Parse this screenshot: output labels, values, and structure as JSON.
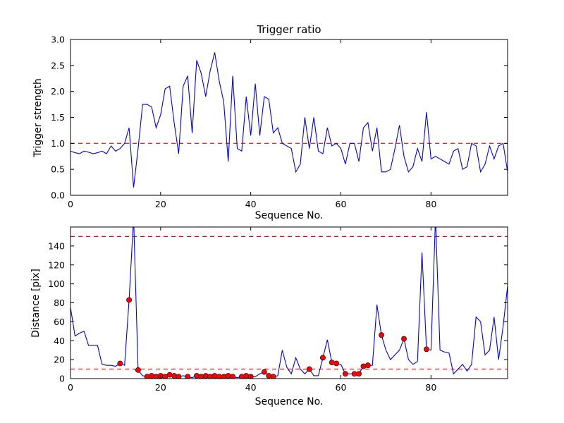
{
  "figure": {
    "background": "#ffffff",
    "line_color": "#0000ff",
    "threshold_color": "#ff0000",
    "marker_face_color": "#ff0000",
    "marker_edge_color": "#000000",
    "axis_color": "#000000"
  },
  "chart_data": [
    {
      "type": "line",
      "title": "Trigger ratio",
      "xlabel": "Sequence No.",
      "ylabel": "Trigger strength",
      "xlim": [
        0,
        97
      ],
      "ylim": [
        0.0,
        3.0
      ],
      "xticks": [
        0,
        20,
        40,
        60,
        80
      ],
      "xticklabels": [
        "0",
        "20",
        "40",
        "60",
        "80"
      ],
      "yticks": [
        0.0,
        0.5,
        1.0,
        1.5,
        2.0,
        2.5,
        3.0
      ],
      "yticklabels": [
        "0.0",
        "0.5",
        "1.0",
        "1.5",
        "2.0",
        "2.5",
        "3.0"
      ],
      "threshold_lines": [
        1.0
      ],
      "grid": false,
      "legend": null,
      "series": [
        {
          "name": "trigger-ratio",
          "values": [
            0.85,
            0.82,
            0.8,
            0.85,
            0.83,
            0.8,
            0.82,
            0.85,
            0.8,
            0.95,
            0.85,
            0.9,
            1.0,
            1.3,
            0.15,
            0.9,
            1.75,
            1.75,
            1.7,
            1.3,
            1.55,
            2.05,
            2.1,
            1.4,
            0.8,
            2.1,
            2.3,
            1.2,
            2.6,
            2.35,
            1.9,
            2.4,
            2.75,
            2.2,
            1.8,
            0.65,
            2.3,
            0.9,
            0.85,
            1.9,
            1.15,
            2.15,
            1.15,
            1.9,
            1.85,
            1.2,
            1.3,
            1.0,
            0.95,
            0.9,
            0.45,
            0.6,
            1.5,
            0.9,
            1.5,
            0.85,
            0.8,
            1.3,
            0.95,
            1.0,
            0.9,
            0.6,
            1.0,
            1.0,
            0.65,
            1.3,
            1.4,
            0.85,
            1.3,
            0.45,
            0.45,
            0.5,
            0.9,
            1.35,
            0.75,
            0.45,
            0.55,
            0.9,
            0.65,
            1.6,
            0.7,
            0.75,
            0.7,
            0.65,
            0.6,
            0.85,
            0.9,
            0.5,
            0.55,
            1.0,
            0.95,
            0.45,
            0.6,
            0.95,
            0.7,
            0.95,
            1.0,
            0.45
          ]
        }
      ],
      "markers": []
    },
    {
      "type": "line",
      "title": "",
      "xlabel": "Sequence No.",
      "ylabel": "Distance [pix]",
      "xlim": [
        0,
        97
      ],
      "ylim": [
        0,
        160
      ],
      "xticks": [
        0,
        20,
        40,
        60,
        80
      ],
      "xticklabels": [
        "0",
        "20",
        "40",
        "60",
        "80"
      ],
      "yticks": [
        0,
        20,
        40,
        60,
        80,
        100,
        120,
        140
      ],
      "yticklabels": [
        "0",
        "20",
        "40",
        "60",
        "80",
        "100",
        "120",
        "140"
      ],
      "threshold_lines": [
        10,
        150
      ],
      "grid": false,
      "legend": null,
      "series": [
        {
          "name": "distance",
          "values": [
            75,
            45,
            48,
            50,
            35,
            35,
            35,
            15,
            14,
            14,
            13,
            16,
            14,
            83,
            170,
            9,
            3,
            2,
            3,
            2,
            3,
            2,
            4,
            3,
            2,
            3,
            2,
            1,
            3,
            2,
            3,
            2,
            3,
            2,
            2,
            3,
            2,
            1,
            2,
            3,
            2,
            2,
            5,
            7,
            3,
            2,
            3,
            30,
            12,
            5,
            22,
            10,
            5,
            10,
            3,
            3,
            22,
            41,
            17,
            16,
            15,
            5,
            5,
            5,
            5,
            13,
            14,
            14,
            78,
            46,
            30,
            20,
            25,
            30,
            42,
            20,
            15,
            18,
            133,
            31,
            30,
            170,
            30,
            28,
            27,
            5,
            10,
            15,
            8,
            15,
            65,
            60,
            25,
            30,
            65,
            20,
            55,
            98
          ]
        }
      ],
      "markers": [
        [
          11,
          16
        ],
        [
          13,
          83
        ],
        [
          15,
          9
        ],
        [
          17,
          2
        ],
        [
          18,
          3
        ],
        [
          19,
          2
        ],
        [
          20,
          3
        ],
        [
          21,
          2
        ],
        [
          22,
          4
        ],
        [
          23,
          3
        ],
        [
          24,
          2
        ],
        [
          26,
          2
        ],
        [
          28,
          3
        ],
        [
          29,
          2
        ],
        [
          30,
          3
        ],
        [
          31,
          2
        ],
        [
          32,
          3
        ],
        [
          33,
          2
        ],
        [
          34,
          2
        ],
        [
          35,
          3
        ],
        [
          36,
          2
        ],
        [
          38,
          2
        ],
        [
          39,
          3
        ],
        [
          40,
          2
        ],
        [
          43,
          7
        ],
        [
          44,
          3
        ],
        [
          45,
          2
        ],
        [
          53,
          10
        ],
        [
          56,
          22
        ],
        [
          58,
          17
        ],
        [
          59,
          16
        ],
        [
          61,
          5
        ],
        [
          63,
          5
        ],
        [
          64,
          5
        ],
        [
          65,
          13
        ],
        [
          66,
          14
        ],
        [
          69,
          46
        ],
        [
          74,
          42
        ],
        [
          79,
          31
        ]
      ]
    }
  ]
}
